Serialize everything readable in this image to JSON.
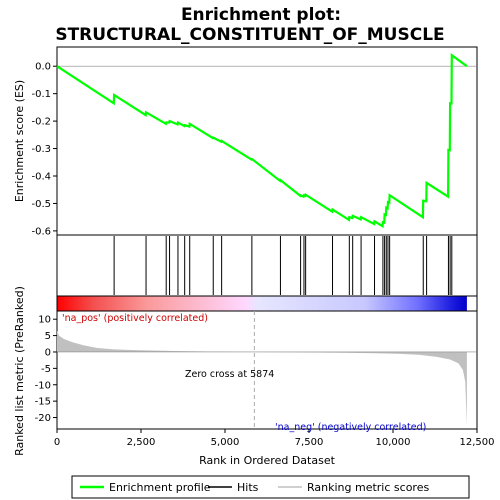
{
  "chart_data": {
    "type": "line",
    "title_line1": "Enrichment plot:",
    "title_line2": "STRUCTURAL_CONSTITUENT_OF_MUSCLE",
    "xlabel": "Rank in Ordered Dataset",
    "ylabel_top": "Enrichment score (ES)",
    "ylabel_bottom": "Ranked list metric (PreRanked)",
    "xlim": [
      0,
      12500
    ],
    "es_ylim": [
      -0.615,
      0.07
    ],
    "metric_ylim": [
      -23.5,
      12.5
    ],
    "x_ticks": [
      0,
      2500,
      5000,
      7500,
      10000,
      12500
    ],
    "x_tick_labels": [
      "0",
      "2,500",
      "5,000",
      "7,500",
      "10,000",
      "12,500"
    ],
    "es_ticks": [
      0.0,
      -0.1,
      -0.2,
      -0.3,
      -0.4,
      -0.5,
      -0.6
    ],
    "es_tick_labels": [
      "0.0",
      "-0.1",
      "-0.2",
      "-0.3",
      "-0.4",
      "-0.5",
      "-0.6"
    ],
    "metric_ticks": [
      10,
      5,
      0,
      -5,
      -10,
      -15,
      -20
    ],
    "metric_tick_labels": [
      "10",
      "5",
      "0",
      "-5",
      "-10",
      "-15",
      "-20"
    ],
    "hits": [
      1700,
      2650,
      3250,
      3350,
      3600,
      3800,
      3950,
      4650,
      4900,
      5800,
      6650,
      7250,
      7350,
      7400,
      8200,
      8700,
      8800,
      9050,
      9450,
      9700,
      9750,
      9800,
      9850,
      9900,
      10900,
      11000,
      11650,
      11700,
      11750
    ],
    "es_points": [
      [
        0,
        0.0
      ],
      [
        1690,
        -0.135
      ],
      [
        1700,
        -0.105
      ],
      [
        2640,
        -0.178
      ],
      [
        2650,
        -0.168
      ],
      [
        3240,
        -0.21
      ],
      [
        3250,
        -0.205
      ],
      [
        3340,
        -0.205
      ],
      [
        3350,
        -0.2
      ],
      [
        3590,
        -0.212
      ],
      [
        3600,
        -0.205
      ],
      [
        3790,
        -0.218
      ],
      [
        3800,
        -0.215
      ],
      [
        3940,
        -0.22
      ],
      [
        3950,
        -0.21
      ],
      [
        4640,
        -0.262
      ],
      [
        4650,
        -0.26
      ],
      [
        4890,
        -0.275
      ],
      [
        4900,
        -0.272
      ],
      [
        5790,
        -0.34
      ],
      [
        5800,
        -0.338
      ],
      [
        6640,
        -0.418
      ],
      [
        6650,
        -0.415
      ],
      [
        7240,
        -0.472
      ],
      [
        7250,
        -0.47
      ],
      [
        7340,
        -0.475
      ],
      [
        7350,
        -0.47
      ],
      [
        7390,
        -0.472
      ],
      [
        7400,
        -0.468
      ],
      [
        8190,
        -0.53
      ],
      [
        8200,
        -0.522
      ],
      [
        8690,
        -0.56
      ],
      [
        8700,
        -0.55
      ],
      [
        8790,
        -0.553
      ],
      [
        8800,
        -0.545
      ],
      [
        9040,
        -0.558
      ],
      [
        9050,
        -0.55
      ],
      [
        9440,
        -0.575
      ],
      [
        9450,
        -0.565
      ],
      [
        9690,
        -0.583
      ],
      [
        9700,
        -0.568
      ],
      [
        9740,
        -0.57
      ],
      [
        9750,
        -0.54
      ],
      [
        9790,
        -0.542
      ],
      [
        9800,
        -0.515
      ],
      [
        9840,
        -0.518
      ],
      [
        9850,
        -0.495
      ],
      [
        9890,
        -0.497
      ],
      [
        9900,
        -0.47
      ],
      [
        10890,
        -0.55
      ],
      [
        10900,
        -0.49
      ],
      [
        10990,
        -0.492
      ],
      [
        11000,
        -0.425
      ],
      [
        11640,
        -0.475
      ],
      [
        11650,
        -0.305
      ],
      [
        11690,
        -0.306
      ],
      [
        11700,
        -0.135
      ],
      [
        11740,
        -0.136
      ],
      [
        11750,
        0.04
      ],
      [
        12200,
        0.0
      ]
    ],
    "metric_points": [
      [
        0,
        6.5
      ],
      [
        60,
        5.0
      ],
      [
        200,
        4.0
      ],
      [
        450,
        3.0
      ],
      [
        800,
        2.0
      ],
      [
        1200,
        1.2
      ],
      [
        1700,
        0.8
      ],
      [
        2500,
        0.5
      ],
      [
        3500,
        0.3
      ],
      [
        4500,
        0.15
      ],
      [
        5874,
        0.0
      ],
      [
        7000,
        -0.1
      ],
      [
        8500,
        -0.25
      ],
      [
        9500,
        -0.4
      ],
      [
        10200,
        -0.6
      ],
      [
        10800,
        -0.9
      ],
      [
        11300,
        -1.5
      ],
      [
        11700,
        -2.3
      ],
      [
        11950,
        -3.5
      ],
      [
        12080,
        -5.5
      ],
      [
        12150,
        -9.0
      ],
      [
        12200,
        -22.5
      ]
    ],
    "zero_cross_rank": 5874,
    "zero_cross_label": "Zero cross at 5874",
    "pos_label": "'na_pos' (positively correlated)",
    "neg_label": "'na_neg' (negatively correlated)",
    "colors": {
      "es_line": "#00ff00",
      "hit": "#000000",
      "metric_fill": "#c0c0c0",
      "pos_text": "#cc0000",
      "neg_text": "#0000cc",
      "zero_line": "#aaaaaa"
    },
    "legend": [
      {
        "name": "Enrichment profile",
        "color": "#00ff00"
      },
      {
        "name": "Hits",
        "color": "#000000"
      },
      {
        "name": "Ranking metric scores",
        "color": "#c0c0c0"
      }
    ]
  }
}
